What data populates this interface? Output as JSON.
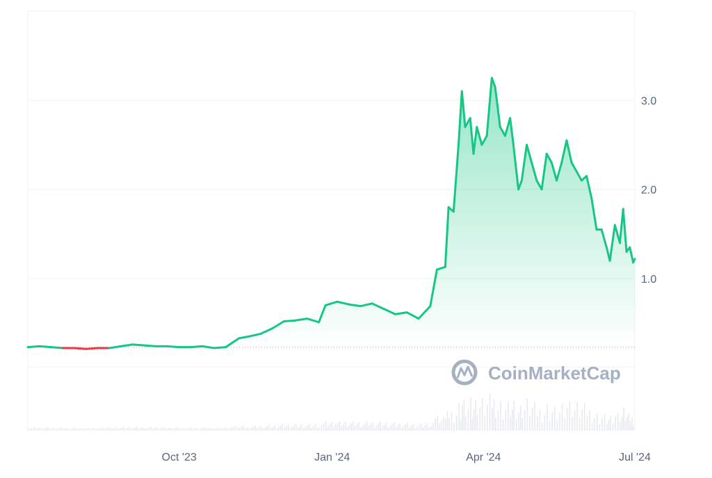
{
  "watermark": {
    "text": "CoinMarketCap",
    "logo": "coinmarketcap-logo"
  },
  "colors": {
    "up": "#16c784",
    "down": "#ea3943",
    "grid": "#eff2f5",
    "baseline": "#a6b0c3",
    "volume": "#e7eaee",
    "tick_text": "#58667e"
  },
  "chart_data": {
    "type": "area",
    "title": "",
    "xlabel": "",
    "ylabel": "",
    "ylim": [
      -0.7,
      4.0
    ],
    "yticks": [
      {
        "value": 1.0,
        "label": "1.0"
      },
      {
        "value": 2.0,
        "label": "2.0"
      },
      {
        "value": 3.0,
        "label": "3.0"
      }
    ],
    "xticks": [
      {
        "date": "2023-10-01",
        "label": "Oct '23"
      },
      {
        "date": "2024-01-01",
        "label": "Jan '24"
      },
      {
        "date": "2024-04-01",
        "label": "Apr '24"
      },
      {
        "date": "2024-07-01",
        "label": "Jul '24"
      }
    ],
    "xlim": [
      "2023-07-02",
      "2024-07-01"
    ],
    "baseline_value": 0.23,
    "grid": true,
    "legend": "none",
    "series": [
      {
        "values": [
          [
            "2023-07-02",
            0.23
          ],
          [
            "2023-07-09",
            0.24
          ],
          [
            "2023-07-16",
            0.23
          ],
          [
            "2023-07-23",
            0.22
          ],
          [
            "2023-07-30",
            0.22
          ],
          [
            "2023-08-06",
            0.21
          ],
          [
            "2023-08-13",
            0.22
          ],
          [
            "2023-08-20",
            0.22
          ],
          [
            "2023-08-27",
            0.24
          ],
          [
            "2023-09-03",
            0.26
          ],
          [
            "2023-09-10",
            0.25
          ],
          [
            "2023-09-17",
            0.24
          ],
          [
            "2023-09-24",
            0.24
          ],
          [
            "2023-10-01",
            0.23
          ],
          [
            "2023-10-08",
            0.23
          ],
          [
            "2023-10-15",
            0.24
          ],
          [
            "2023-10-22",
            0.22
          ],
          [
            "2023-10-29",
            0.23
          ],
          [
            "2023-11-02",
            0.28
          ],
          [
            "2023-11-06",
            0.33
          ],
          [
            "2023-11-12",
            0.35
          ],
          [
            "2023-11-19",
            0.38
          ],
          [
            "2023-11-26",
            0.44
          ],
          [
            "2023-12-03",
            0.52
          ],
          [
            "2023-12-10",
            0.53
          ],
          [
            "2023-12-17",
            0.55
          ],
          [
            "2023-12-24",
            0.51
          ],
          [
            "2023-12-28",
            0.7
          ],
          [
            "2024-01-04",
            0.74
          ],
          [
            "2024-01-11",
            0.71
          ],
          [
            "2024-01-18",
            0.69
          ],
          [
            "2024-01-25",
            0.72
          ],
          [
            "2024-02-01",
            0.66
          ],
          [
            "2024-02-08",
            0.6
          ],
          [
            "2024-02-15",
            0.62
          ],
          [
            "2024-02-22",
            0.55
          ],
          [
            "2024-02-29",
            0.69
          ],
          [
            "2024-03-04",
            1.1
          ],
          [
            "2024-03-09",
            1.13
          ],
          [
            "2024-03-11",
            1.8
          ],
          [
            "2024-03-14",
            1.75
          ],
          [
            "2024-03-17",
            2.5
          ],
          [
            "2024-03-19",
            3.1
          ],
          [
            "2024-03-21",
            2.7
          ],
          [
            "2024-03-24",
            2.8
          ],
          [
            "2024-03-26",
            2.4
          ],
          [
            "2024-03-28",
            2.7
          ],
          [
            "2024-03-31",
            2.5
          ],
          [
            "2024-04-03",
            2.6
          ],
          [
            "2024-04-06",
            3.25
          ],
          [
            "2024-04-08",
            3.15
          ],
          [
            "2024-04-11",
            2.7
          ],
          [
            "2024-04-14",
            2.6
          ],
          [
            "2024-04-17",
            2.8
          ],
          [
            "2024-04-19",
            2.5
          ],
          [
            "2024-04-22",
            2.0
          ],
          [
            "2024-04-24",
            2.1
          ],
          [
            "2024-04-27",
            2.5
          ],
          [
            "2024-04-30",
            2.3
          ],
          [
            "2024-05-03",
            2.1
          ],
          [
            "2024-05-06",
            2.0
          ],
          [
            "2024-05-09",
            2.4
          ],
          [
            "2024-05-12",
            2.3
          ],
          [
            "2024-05-15",
            2.1
          ],
          [
            "2024-05-18",
            2.3
          ],
          [
            "2024-05-21",
            2.55
          ],
          [
            "2024-05-24",
            2.3
          ],
          [
            "2024-05-27",
            2.2
          ],
          [
            "2024-05-30",
            2.1
          ],
          [
            "2024-06-02",
            2.15
          ],
          [
            "2024-06-05",
            1.9
          ],
          [
            "2024-06-08",
            1.55
          ],
          [
            "2024-06-11",
            1.55
          ],
          [
            "2024-06-14",
            1.35
          ],
          [
            "2024-06-16",
            1.2
          ],
          [
            "2024-06-19",
            1.6
          ],
          [
            "2024-06-22",
            1.4
          ],
          [
            "2024-06-24",
            1.78
          ],
          [
            "2024-06-26",
            1.3
          ],
          [
            "2024-06-28",
            1.35
          ],
          [
            "2024-06-30",
            1.18
          ],
          [
            "2024-07-01",
            1.22
          ]
        ]
      }
    ]
  }
}
